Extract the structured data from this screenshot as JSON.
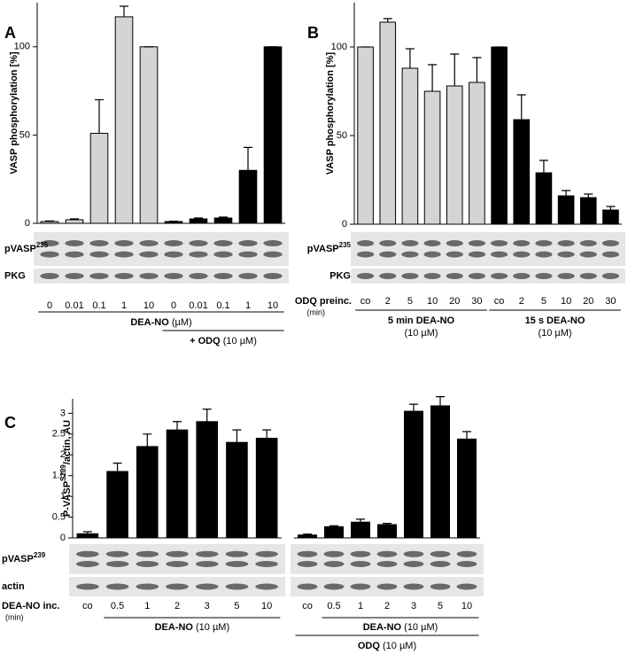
{
  "chart_data": [
    {
      "type": "bar",
      "panel": "A",
      "ylabel": "VASP phosphorylation [%]",
      "ylim": [
        0,
        125
      ],
      "yticks": [
        0,
        50,
        100
      ],
      "categories": [
        "0",
        "0.01",
        "0.1",
        "1",
        "10",
        "0",
        "0.01",
        "0.1",
        "1",
        "10"
      ],
      "values": [
        1,
        2,
        51,
        117,
        100,
        1,
        2.5,
        3,
        30,
        100
      ],
      "errors": [
        0.3,
        0.5,
        19,
        6,
        0,
        0.2,
        0.5,
        0.5,
        13,
        0
      ],
      "colors": [
        "#d4d4d4",
        "#d4d4d4",
        "#d4d4d4",
        "#d4d4d4",
        "#d4d4d4",
        "#000000",
        "#000000",
        "#000000",
        "#000000",
        "#000000"
      ],
      "blots": [
        {
          "label": "pVASP",
          "label_sup": "235"
        },
        {
          "label": "PKG"
        }
      ],
      "groups": [
        {
          "label": "DEA-NO",
          "unit": "(µM)"
        },
        {
          "label": "+ ODQ",
          "unit": "(10 µM)"
        }
      ]
    },
    {
      "type": "bar",
      "panel": "B",
      "ylabel": "VASP phosphorylation [%]",
      "ylim": [
        0,
        125
      ],
      "yticks": [
        0,
        50,
        100
      ],
      "xlabel": "ODQ preinc.",
      "xlabel_unit": "(min)",
      "categories": [
        "co",
        "2",
        "5",
        "10",
        "20",
        "30",
        "co",
        "2",
        "5",
        "10",
        "20",
        "30"
      ],
      "values": [
        100,
        114,
        88,
        75,
        78,
        80,
        100,
        59,
        29,
        16,
        15,
        8
      ],
      "errors": [
        0,
        2,
        11,
        15,
        18,
        14,
        0,
        14,
        7,
        3,
        2,
        2
      ],
      "colors": [
        "#d4d4d4",
        "#d4d4d4",
        "#d4d4d4",
        "#d4d4d4",
        "#d4d4d4",
        "#d4d4d4",
        "#000000",
        "#000000",
        "#000000",
        "#000000",
        "#000000",
        "#000000"
      ],
      "blots": [
        {
          "label": "pVASP",
          "label_sup": "235"
        },
        {
          "label": "PKG"
        }
      ],
      "groups": [
        {
          "label": "5 min DEA-NO",
          "unit": "(10 µM)"
        },
        {
          "label": "15 s DEA-NO",
          "unit": "(10 µM)"
        }
      ]
    },
    {
      "type": "bar",
      "panel": "C",
      "ylabel": "P-VASP",
      "ylabel_sup": "S239",
      "ylabel_end": "/actin, AU",
      "ylim": [
        0,
        3.35
      ],
      "yticks": [
        0,
        0.5,
        1,
        1.5,
        2,
        2.5,
        3
      ],
      "xlabel": "DEA-NO inc.",
      "xlabel_unit": "(min)",
      "categories": [
        "co",
        "0.5",
        "1",
        "2",
        "3",
        "5",
        "10"
      ],
      "values": [
        0.1,
        1.6,
        2.2,
        2.6,
        2.8,
        2.3,
        2.4
      ],
      "errors": [
        0.05,
        0.2,
        0.3,
        0.2,
        0.3,
        0.3,
        0.2
      ],
      "colors": [
        "#000000",
        "#000000",
        "#000000",
        "#000000",
        "#000000",
        "#000000",
        "#000000"
      ],
      "blots": [
        {
          "label": "pVASP",
          "label_sup": "239"
        },
        {
          "label": "actin"
        }
      ],
      "groups": [
        {
          "label": "DEA-NO",
          "unit": "(10 µM)"
        }
      ]
    },
    {
      "type": "bar",
      "ylim": [
        0,
        3.35
      ],
      "categories": [
        "co",
        "0.5",
        "1",
        "2",
        "3",
        "5",
        "10"
      ],
      "values": [
        0.07,
        0.27,
        0.38,
        0.32,
        3.05,
        3.18,
        2.38
      ],
      "errors": [
        0.02,
        0.02,
        0.07,
        0.03,
        0.17,
        0.22,
        0.18
      ],
      "colors": [
        "#000000",
        "#000000",
        "#000000",
        "#000000",
        "#000000",
        "#000000",
        "#000000"
      ],
      "groups": [
        {
          "label": "DEA-NO",
          "unit": "(10 µM)"
        },
        {
          "label": "ODQ",
          "unit": "(10 µM)"
        }
      ]
    }
  ]
}
